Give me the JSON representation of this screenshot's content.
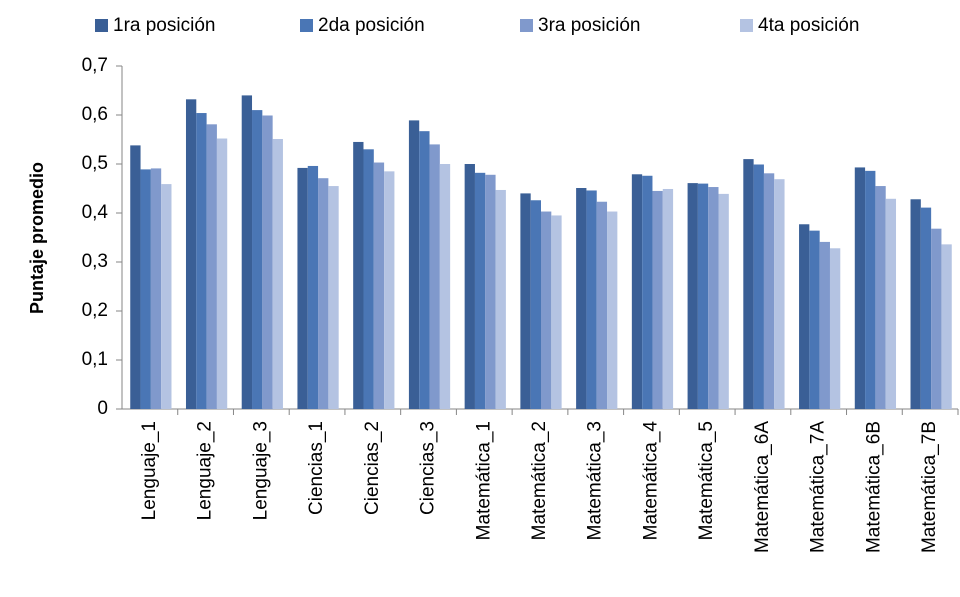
{
  "chart_data": {
    "type": "bar",
    "y_label": "Puntaje promedio",
    "categories": [
      "Lenguaje_1",
      "Lenguaje_2",
      "Lenguaje_3",
      "Ciencias_1",
      "Ciencias_2",
      "Ciencias_3",
      "Matemática_1",
      "Matemática_2",
      "Matemática_3",
      "Matemática_4",
      "Matemática_5",
      "Matemática_6A",
      "Matemática_7A",
      "Matemática_6B",
      "Matemática_7B"
    ],
    "series": [
      {
        "name": "1ra posición",
        "color": "#3a5f96",
        "values": [
          0.538,
          0.632,
          0.64,
          0.492,
          0.545,
          0.589,
          0.5,
          0.44,
          0.451,
          0.479,
          0.461,
          0.51,
          0.377,
          0.493,
          0.428
        ]
      },
      {
        "name": "2da posición",
        "color": "#4a76b5",
        "values": [
          0.489,
          0.604,
          0.61,
          0.496,
          0.53,
          0.567,
          0.482,
          0.426,
          0.446,
          0.476,
          0.46,
          0.499,
          0.364,
          0.486,
          0.411
        ]
      },
      {
        "name": "3ra posición",
        "color": "#8099cc",
        "values": [
          0.491,
          0.581,
          0.599,
          0.471,
          0.503,
          0.54,
          0.478,
          0.403,
          0.423,
          0.445,
          0.453,
          0.481,
          0.341,
          0.455,
          0.368
        ]
      },
      {
        "name": "4ta posición",
        "color": "#b4c3e2",
        "values": [
          0.459,
          0.552,
          0.551,
          0.455,
          0.485,
          0.5,
          0.447,
          0.395,
          0.403,
          0.449,
          0.439,
          0.469,
          0.328,
          0.429,
          0.336
        ]
      }
    ],
    "ylim": [
      0,
      0.7
    ],
    "yticks": [
      0,
      {
        "value": 0.1,
        "label": "0,1"
      },
      {
        "value": 0.2,
        "label": "0,2"
      },
      {
        "value": 0.3,
        "label": "0,3"
      },
      {
        "value": 0.4,
        "label": "0,4"
      },
      {
        "value": 0.5,
        "label": "0,5"
      },
      {
        "value": 0.6,
        "label": "0,6"
      },
      {
        "value": 0.7,
        "label": "0,7"
      }
    ],
    "grid": false,
    "legend": "top"
  }
}
